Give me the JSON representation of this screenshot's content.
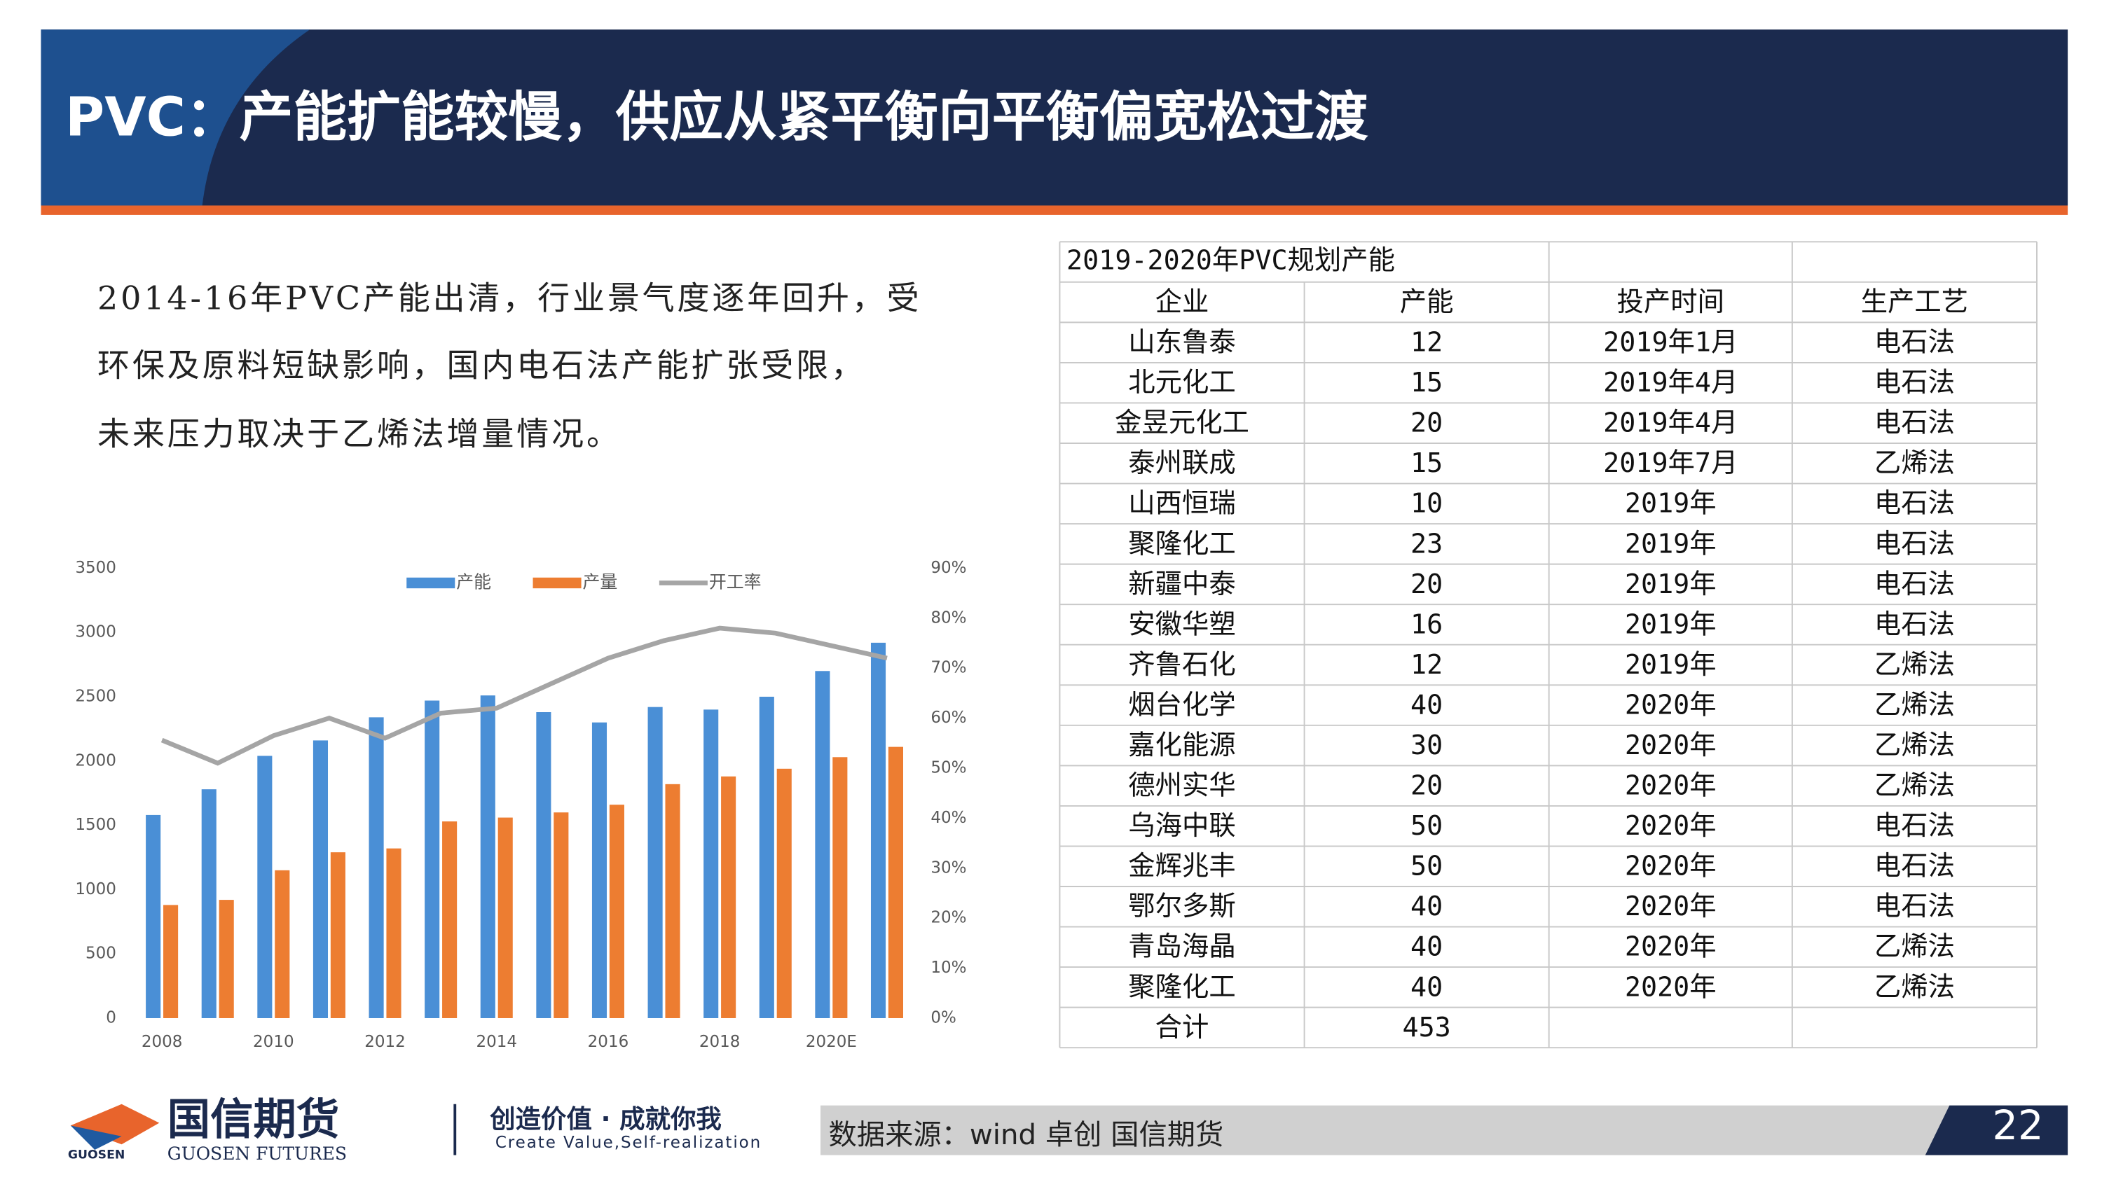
{
  "header": {
    "title": "PVC：产能扩能较慢，供应从紧平衡向平衡偏宽松过渡"
  },
  "text": {
    "lines": [
      "2014-16年PVC产能出清，行业景气度逐年回升，受",
      "环保及原料短缺影响，国内电石法产能扩张受限，",
      "未来压力取决于乙烯法增量情况。"
    ]
  },
  "chart_data": {
    "type": "bar_line",
    "categories": [
      "2008",
      null,
      "2010",
      null,
      "2012",
      null,
      "2014",
      null,
      "2016",
      null,
      "2018",
      null,
      "2020E",
      null
    ],
    "series": [
      {
        "name": "产能",
        "color": "#4a8fd6",
        "values": [
          1580,
          1780,
          2040,
          2160,
          2340,
          2470,
          2510,
          2380,
          2300,
          2420,
          2400,
          2500,
          2700,
          2920
        ]
      },
      {
        "name": "产量",
        "color": "#ed7d31",
        "values": [
          880,
          920,
          1150,
          1290,
          1320,
          1530,
          1560,
          1600,
          1660,
          1820,
          1880,
          1940,
          2030,
          2110
        ]
      },
      {
        "name": "开工率",
        "color": "#a5a5a5",
        "axis": "y2",
        "values": [
          55.6,
          51,
          56.5,
          60,
          56,
          61,
          62,
          67,
          72,
          75.5,
          78,
          77,
          74.5,
          72
        ]
      }
    ],
    "ylim": [
      0,
      3500
    ],
    "yticks": [
      0,
      500,
      1000,
      1500,
      2000,
      2500,
      3000,
      3500
    ],
    "y2lim": [
      0,
      90
    ],
    "y2ticks": [
      {
        "value": 0,
        "label": "0%"
      },
      {
        "value": 10,
        "label": "10%"
      },
      {
        "value": 20,
        "label": "20%"
      },
      {
        "value": 30,
        "label": "30%"
      },
      {
        "value": 40,
        "label": "40%"
      },
      {
        "value": 50,
        "label": "50%"
      },
      {
        "value": 60,
        "label": "60%"
      },
      {
        "value": 70,
        "label": "70%"
      },
      {
        "value": 80,
        "label": "80%"
      },
      {
        "value": 90,
        "label": "90%"
      }
    ],
    "legend": "top",
    "grid": false
  },
  "table": {
    "title": "2019-2020年PVC规划产能",
    "header": [
      "企业",
      "产能",
      "投产时间",
      "生产工艺"
    ],
    "rows": [
      [
        "山东鲁泰",
        "12",
        "2019年1月",
        "电石法"
      ],
      [
        "北元化工",
        "15",
        "2019年4月",
        "电石法"
      ],
      [
        "金昱元化工",
        "20",
        "2019年4月",
        "电石法"
      ],
      [
        "泰州联成",
        "15",
        "2019年7月",
        "乙烯法"
      ],
      [
        "山西恒瑞",
        "10",
        "2019年",
        "电石法"
      ],
      [
        "聚隆化工",
        "23",
        "2019年",
        "电石法"
      ],
      [
        "新疆中泰",
        "20",
        "2019年",
        "电石法"
      ],
      [
        "安徽华塑",
        "16",
        "2019年",
        "电石法"
      ],
      [
        "齐鲁石化",
        "12",
        "2019年",
        "乙烯法"
      ],
      [
        "烟台化学",
        "40",
        "2020年",
        "乙烯法"
      ],
      [
        "嘉化能源",
        "30",
        "2020年",
        "乙烯法"
      ],
      [
        "德州实华",
        "20",
        "2020年",
        "乙烯法"
      ],
      [
        "乌海中联",
        "50",
        "2020年",
        "电石法"
      ],
      [
        "金辉兆丰",
        "50",
        "2020年",
        "电石法"
      ],
      [
        "鄂尔多斯",
        "40",
        "2020年",
        "电石法"
      ],
      [
        "青岛海晶",
        "40",
        "2020年",
        "乙烯法"
      ],
      [
        "聚隆化工",
        "40",
        "2020年",
        "乙烯法"
      ]
    ],
    "total": [
      "合计",
      "453"
    ]
  },
  "footer": {
    "brand": "国信期货",
    "brand_en": "GUOSEN FUTURES",
    "logo_small": "GUOSEN",
    "slogan": "创造价值 · 成就你我",
    "slogan_en": "Create Value,Self-realization",
    "source": "数据来源：wind  卓创  国信期货",
    "page": "22"
  }
}
